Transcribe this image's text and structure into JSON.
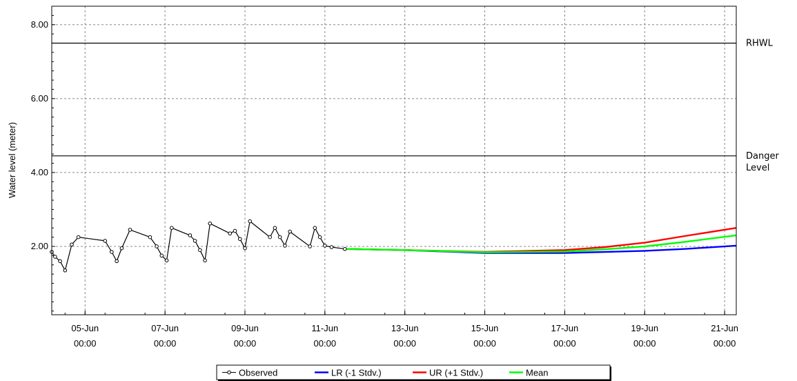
{
  "chart_data": {
    "type": "line",
    "ylabel": "Water level (meter)",
    "ylim": [
      0.15,
      8.5
    ],
    "yticks": [
      "2.00",
      "4.00",
      "6.00",
      "8.00"
    ],
    "xlim": [
      "2023-06-04 04:00",
      "2023-06-21 07:00"
    ],
    "xticks": [
      {
        "date": "05-Jun",
        "time": "00:00"
      },
      {
        "date": "07-Jun",
        "time": "00:00"
      },
      {
        "date": "09-Jun",
        "time": "00:00"
      },
      {
        "date": "11-Jun",
        "time": "00:00"
      },
      {
        "date": "13-Jun",
        "time": "00:00"
      },
      {
        "date": "15-Jun",
        "time": "00:00"
      },
      {
        "date": "17-Jun",
        "time": "00:00"
      },
      {
        "date": "19-Jun",
        "time": "00:00"
      },
      {
        "date": "21-Jun",
        "time": "00:00"
      }
    ],
    "grid": true,
    "legend_position": "bottom",
    "reference_lines": [
      {
        "label": "RHWL",
        "value": 7.5
      },
      {
        "label": "Danger Level",
        "value": 4.45
      }
    ],
    "series": [
      {
        "name": "Observed",
        "color": "#000000",
        "marker": "circle",
        "points": [
          [
            "2023-06-04 04:00",
            1.85
          ],
          [
            "2023-06-04 06:00",
            1.72
          ],
          [
            "2023-06-04 09:00",
            1.6
          ],
          [
            "2023-06-04 12:00",
            1.35
          ],
          [
            "2023-06-04 16:00",
            2.05
          ],
          [
            "2023-06-04 20:00",
            2.25
          ],
          [
            "2023-06-05 12:00",
            2.15
          ],
          [
            "2023-06-05 16:00",
            1.85
          ],
          [
            "2023-06-05 19:00",
            1.6
          ],
          [
            "2023-06-05 22:00",
            1.95
          ],
          [
            "2023-06-06 03:00",
            2.45
          ],
          [
            "2023-06-06 15:00",
            2.25
          ],
          [
            "2023-06-06 19:00",
            2.0
          ],
          [
            "2023-06-06 22:00",
            1.75
          ],
          [
            "2023-06-07 01:00",
            1.62
          ],
          [
            "2023-06-07 04:00",
            2.5
          ],
          [
            "2023-06-07 15:00",
            2.3
          ],
          [
            "2023-06-07 18:00",
            2.15
          ],
          [
            "2023-06-07 21:00",
            1.9
          ],
          [
            "2023-06-08 00:00",
            1.62
          ],
          [
            "2023-06-08 03:00",
            2.62
          ],
          [
            "2023-06-08 15:00",
            2.35
          ],
          [
            "2023-06-08 18:00",
            2.42
          ],
          [
            "2023-06-08 21:00",
            2.2
          ],
          [
            "2023-06-09 00:00",
            1.95
          ],
          [
            "2023-06-09 03:00",
            2.68
          ],
          [
            "2023-06-09 15:00",
            2.25
          ],
          [
            "2023-06-09 18:00",
            2.5
          ],
          [
            "2023-06-09 21:00",
            2.25
          ],
          [
            "2023-06-10 00:00",
            2.02
          ],
          [
            "2023-06-10 03:00",
            2.4
          ],
          [
            "2023-06-10 15:00",
            2.0
          ],
          [
            "2023-06-10 18:00",
            2.5
          ],
          [
            "2023-06-10 21:00",
            2.25
          ],
          [
            "2023-06-11 00:00",
            2.02
          ],
          [
            "2023-06-11 04:00",
            1.98
          ],
          [
            "2023-06-11 12:00",
            1.93
          ]
        ]
      },
      {
        "name": "LR (-1 Stdv.)",
        "color": "#0000ff",
        "points": [
          [
            "2023-06-11 12:00",
            1.93
          ],
          [
            "2023-06-13 00:00",
            1.9
          ],
          [
            "2023-06-15 00:00",
            1.82
          ],
          [
            "2023-06-17 00:00",
            1.82
          ],
          [
            "2023-06-19 00:00",
            1.88
          ],
          [
            "2023-06-20 00:00",
            1.93
          ],
          [
            "2023-06-21 07:00",
            2.02
          ]
        ]
      },
      {
        "name": "UR (+1 Stdv.)",
        "color": "#ff0000",
        "points": [
          [
            "2023-06-11 12:00",
            1.93
          ],
          [
            "2023-06-13 00:00",
            1.9
          ],
          [
            "2023-06-15 00:00",
            1.85
          ],
          [
            "2023-06-17 00:00",
            1.9
          ],
          [
            "2023-06-18 00:00",
            1.98
          ],
          [
            "2023-06-19 00:00",
            2.1
          ],
          [
            "2023-06-20 00:00",
            2.28
          ],
          [
            "2023-06-21 07:00",
            2.5
          ]
        ]
      },
      {
        "name": "Mean",
        "color": "#00ff00",
        "points": [
          [
            "2023-06-11 12:00",
            1.93
          ],
          [
            "2023-06-13 00:00",
            1.9
          ],
          [
            "2023-06-15 00:00",
            1.84
          ],
          [
            "2023-06-17 00:00",
            1.86
          ],
          [
            "2023-06-18 00:00",
            1.92
          ],
          [
            "2023-06-19 00:00",
            2.0
          ],
          [
            "2023-06-20 00:00",
            2.12
          ],
          [
            "2023-06-21 07:00",
            2.3
          ]
        ]
      }
    ]
  }
}
